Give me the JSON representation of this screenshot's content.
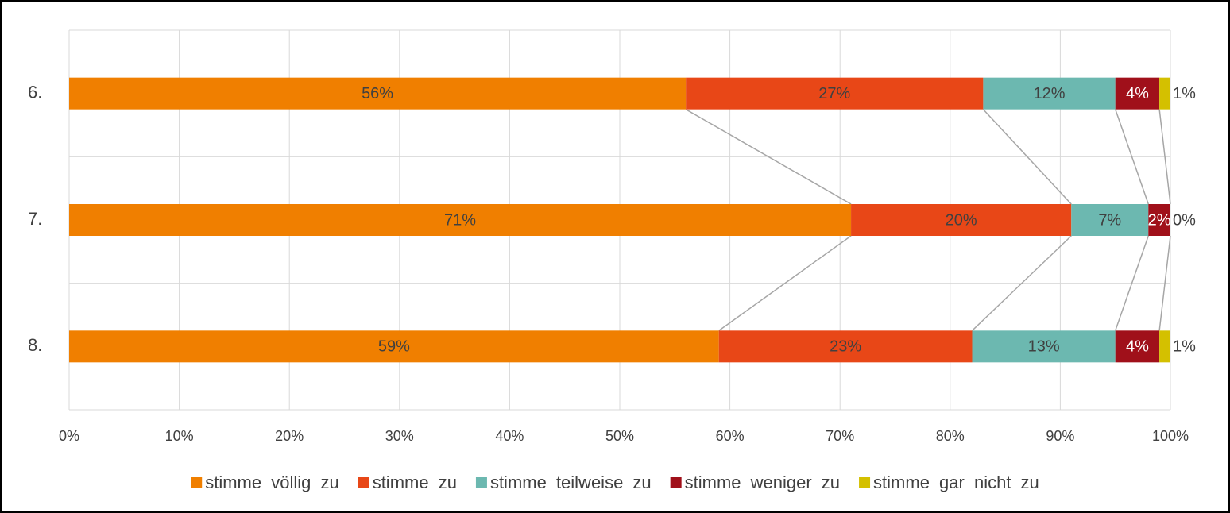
{
  "chart_data": {
    "type": "stacked-bar-horizontal-percent",
    "categories": [
      "6.",
      "7.",
      "8."
    ],
    "series": [
      {
        "name": "stimme völlig zu",
        "color": "#f07f00",
        "values": [
          56,
          71,
          59
        ],
        "value_labels": [
          "56%",
          "71%",
          "59%"
        ]
      },
      {
        "name": "stimme zu",
        "color": "#e84717",
        "values": [
          27,
          20,
          23
        ],
        "value_labels": [
          "27%",
          "20%",
          "23%"
        ]
      },
      {
        "name": "stimme teilweise zu",
        "color": "#6cb8b0",
        "values": [
          12,
          7,
          13
        ],
        "value_labels": [
          "12%",
          "7%",
          "13%"
        ]
      },
      {
        "name": "stimme weniger zu",
        "color": "#a0101a",
        "values": [
          4,
          2,
          4
        ],
        "value_labels": [
          "4%",
          "2%",
          "4%"
        ]
      },
      {
        "name": "stimme gar nicht zu",
        "color": "#d4c000",
        "values": [
          1,
          0,
          1
        ],
        "value_labels": [
          "1%",
          "0%",
          "1%"
        ]
      }
    ],
    "xlim": [
      0,
      100
    ],
    "xticks": [
      {
        "value": 0,
        "label": "0%"
      },
      {
        "value": 10,
        "label": "10%"
      },
      {
        "value": 20,
        "label": "20%"
      },
      {
        "value": 30,
        "label": "30%"
      },
      {
        "value": 40,
        "label": "40%"
      },
      {
        "value": 50,
        "label": "50%"
      },
      {
        "value": 60,
        "label": "60%"
      },
      {
        "value": 70,
        "label": "70%"
      },
      {
        "value": 80,
        "label": "80%"
      },
      {
        "value": 90,
        "label": "90%"
      },
      {
        "value": 100,
        "label": "100%"
      }
    ],
    "grid": true,
    "legend": "bottom"
  }
}
